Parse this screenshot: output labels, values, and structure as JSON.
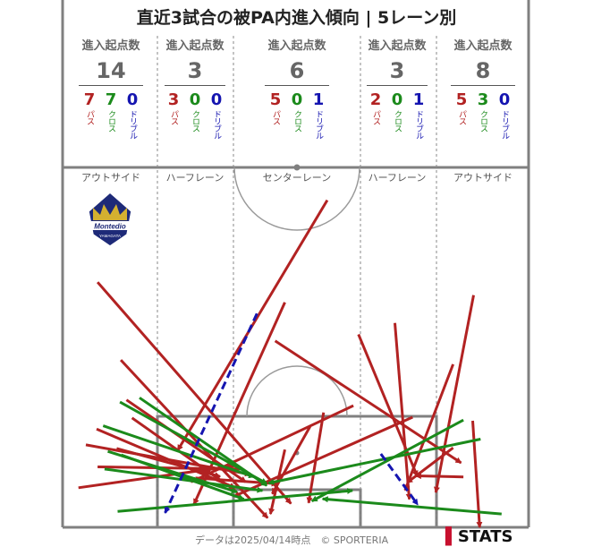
{
  "title": "直近3試合の被PA内進入傾向 | 5レーン別",
  "lanes": [
    {
      "header": "進入起点数",
      "total": "14",
      "pass": "7",
      "cross": "7",
      "dribble": "0",
      "name": "アウトサイド"
    },
    {
      "header": "進入起点数",
      "total": "3",
      "pass": "3",
      "cross": "0",
      "dribble": "0",
      "name": "ハーフレーン"
    },
    {
      "header": "進入起点数",
      "total": "6",
      "pass": "5",
      "cross": "0",
      "dribble": "1",
      "name": "センターレーン"
    },
    {
      "header": "進入起点数",
      "total": "3",
      "pass": "2",
      "cross": "0",
      "dribble": "1",
      "name": "ハーフレーン"
    },
    {
      "header": "進入起点数",
      "total": "8",
      "pass": "5",
      "cross": "3",
      "dribble": "0",
      "name": "アウトサイド"
    }
  ],
  "count_labels": {
    "pass": "パス",
    "cross": "クロス",
    "dribble": "ドリブル"
  },
  "colors": {
    "pass": "#b22222",
    "cross": "#1b8a1b",
    "dribble": "#1515b0"
  },
  "logo_text": "Montedio",
  "logo_subtext": "YAMAGATA",
  "footer": "データは2025/04/14時点　© SPORTERIA",
  "brand": "STATS",
  "chart_data": {
    "type": "scatter",
    "note_units": "pitch coordinates: x = 0–100 across the attacking half (left→right), y = 0–100 from the halfway line (0) to the goal line (100)",
    "arrows": [
      {
        "type": "pass",
        "from": [
          12.5,
          53.5
        ],
        "to": [
          44.0,
          97.4
        ]
      },
      {
        "type": "pass",
        "from": [
          13.7,
          64.6
        ],
        "to": [
          39.3,
          87.4
        ]
      },
      {
        "type": "pass",
        "from": [
          5.0,
          77.1
        ],
        "to": [
          40.3,
          85.3
        ]
      },
      {
        "type": "pass",
        "from": [
          7.3,
          72.7
        ],
        "to": [
          37.0,
          89.0
        ]
      },
      {
        "type": "pass",
        "from": [
          7.5,
          83.2
        ],
        "to": [
          38.1,
          83.8
        ]
      },
      {
        "type": "pass",
        "from": [
          3.4,
          89.0
        ],
        "to": [
          36.9,
          82.9
        ]
      },
      {
        "type": "pass",
        "from": [
          11.6,
          78.1
        ],
        "to": [
          33.8,
          85.9
        ]
      },
      {
        "type": "pass",
        "from": [
          7.5,
          31.9
        ],
        "to": [
          49.0,
          93.4
        ]
      },
      {
        "type": "pass",
        "from": [
          14.9,
          69.6
        ],
        "to": [
          37.0,
          89.8
        ]
      },
      {
        "type": "pass",
        "from": [
          28.5,
          86.3
        ],
        "to": [
          46.0,
          87.9
        ]
      },
      {
        "type": "pass",
        "from": [
          56.8,
          9.1
        ],
        "to": [
          24.7,
          78.6
        ]
      },
      {
        "type": "pass",
        "from": [
          47.7,
          37.5
        ],
        "to": [
          28.2,
          93.6
        ]
      },
      {
        "type": "pass",
        "from": [
          53.1,
          72.0
        ],
        "to": [
          45.0,
          90.7
        ]
      },
      {
        "type": "pass",
        "from": [
          45.6,
          48.2
        ],
        "to": [
          85.5,
          82.1
        ]
      },
      {
        "type": "pass",
        "from": [
          75.1,
          69.4
        ],
        "to": [
          36.8,
          91.4
        ]
      },
      {
        "type": "pass",
        "from": [
          56.0,
          68.1
        ],
        "to": [
          52.8,
          93.2
        ]
      },
      {
        "type": "pass",
        "from": [
          62.4,
          66.2
        ],
        "to": [
          27.6,
          87.4
        ]
      },
      {
        "type": "pass",
        "from": [
          47.7,
          78.4
        ],
        "to": [
          44.6,
          96.3
        ]
      },
      {
        "type": "pass",
        "from": [
          88.0,
          70.4
        ],
        "to": [
          89.5,
          100.0
        ]
      },
      {
        "type": "pass",
        "from": [
          63.5,
          46.4
        ],
        "to": [
          76.1,
          85.8
        ]
      },
      {
        "type": "pass",
        "from": [
          83.8,
          54.7
        ],
        "to": [
          73.5,
          89.7
        ]
      },
      {
        "type": "pass",
        "from": [
          88.2,
          35.5
        ],
        "to": [
          80.1,
          90.3
        ]
      },
      {
        "type": "pass",
        "from": [
          83.8,
          77.9
        ],
        "to": [
          73.9,
          87.6
        ]
      },
      {
        "type": "pass",
        "from": [
          71.3,
          43.2
        ],
        "to": [
          74.4,
          92.2
        ]
      },
      {
        "type": "pass",
        "from": [
          86.0,
          86.0
        ],
        "to": [
          75.8,
          85.7
        ]
      },
      {
        "type": "cross",
        "from": [
          16.5,
          64.0
        ],
        "to": [
          43.8,
          88.4
        ]
      },
      {
        "type": "cross",
        "from": [
          8.7,
          71.8
        ],
        "to": [
          41.1,
          86.0
        ]
      },
      {
        "type": "cross",
        "from": [
          9.7,
          78.9
        ],
        "to": [
          37.4,
          90.2
        ]
      },
      {
        "type": "cross",
        "from": [
          9.0,
          83.8
        ],
        "to": [
          42.9,
          89.8
        ]
      },
      {
        "type": "cross",
        "from": [
          12.3,
          65.2
        ],
        "to": [
          43.8,
          87.8
        ]
      },
      {
        "type": "cross",
        "from": [
          12.6,
          79.9
        ],
        "to": [
          38.9,
          92.2
        ]
      },
      {
        "type": "cross",
        "from": [
          11.8,
          95.6
        ],
        "to": [
          62.2,
          89.8
        ]
      },
      {
        "type": "cross",
        "from": [
          86.0,
          70.2
        ],
        "to": [
          53.5,
          92.7
        ]
      },
      {
        "type": "cross",
        "from": [
          89.7,
          75.5
        ],
        "to": [
          44.2,
          87.7
        ]
      },
      {
        "type": "cross",
        "from": [
          94.2,
          96.3
        ],
        "to": [
          55.8,
          92.1
        ]
      },
      {
        "type": "dribble",
        "from": [
          41.7,
          40.6
        ],
        "to": [
          22.0,
          96.0
        ]
      },
      {
        "type": "dribble",
        "from": [
          68.3,
          79.6
        ],
        "to": [
          76.2,
          93.7
        ]
      }
    ]
  }
}
